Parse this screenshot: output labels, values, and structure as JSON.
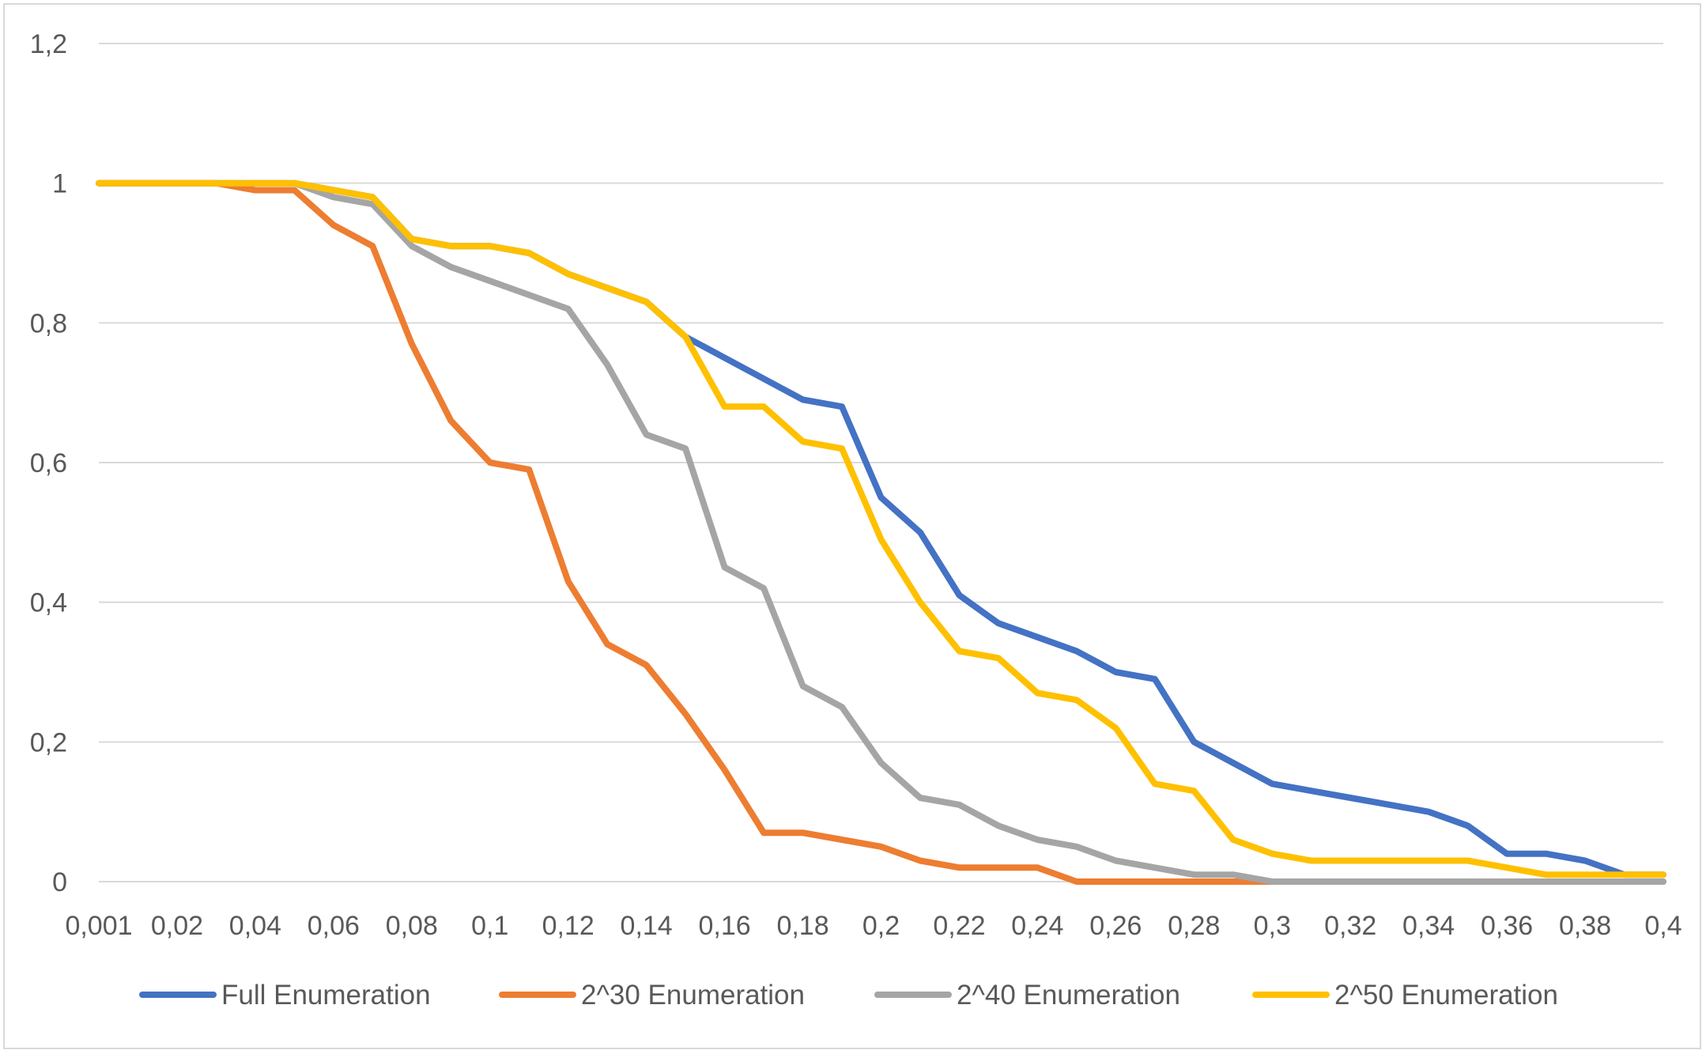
{
  "chart_data": {
    "type": "line",
    "title": "",
    "xlabel": "",
    "ylabel": "",
    "ylim": [
      0,
      1.2
    ],
    "grid": true,
    "legend_position": "bottom",
    "x": [
      0.001,
      0.01,
      0.02,
      0.03,
      0.04,
      0.05,
      0.06,
      0.07,
      0.08,
      0.09,
      0.1,
      0.11,
      0.12,
      0.13,
      0.14,
      0.15,
      0.16,
      0.17,
      0.18,
      0.19,
      0.2,
      0.21,
      0.22,
      0.23,
      0.24,
      0.25,
      0.26,
      0.27,
      0.28,
      0.29,
      0.3,
      0.31,
      0.32,
      0.33,
      0.34,
      0.35,
      0.36,
      0.37,
      0.38,
      0.39,
      0.4
    ],
    "x_tick_labels": [
      "0,001",
      "0,02",
      "0,04",
      "0,06",
      "0,08",
      "0,1",
      "0,12",
      "0,14",
      "0,16",
      "0,18",
      "0,2",
      "0,22",
      "0,24",
      "0,26",
      "0,28",
      "0,3",
      "0,32",
      "0,34",
      "0,36",
      "0,38",
      "0,4"
    ],
    "y_ticks": [
      0,
      0.2,
      0.4,
      0.6,
      0.8,
      1,
      1.2
    ],
    "y_tick_labels": [
      "0",
      "0,2",
      "0,4",
      "0,6",
      "0,8",
      "1",
      "1,2"
    ],
    "series": [
      {
        "name": "Full Enumeration",
        "color": "#4472C4",
        "values": [
          1,
          1,
          1,
          1,
          1,
          1,
          0.99,
          0.98,
          0.92,
          0.91,
          0.91,
          0.9,
          0.87,
          0.85,
          0.83,
          0.78,
          0.75,
          0.72,
          0.69,
          0.68,
          0.55,
          0.5,
          0.41,
          0.37,
          0.35,
          0.33,
          0.3,
          0.29,
          0.2,
          0.17,
          0.14,
          0.13,
          0.12,
          0.11,
          0.1,
          0.08,
          0.04,
          0.04,
          0.03,
          0.01,
          0.01
        ]
      },
      {
        "name": "2^30 Enumeration",
        "color": "#ED7D31",
        "values": [
          1,
          1,
          1,
          1,
          0.99,
          0.99,
          0.94,
          0.91,
          0.77,
          0.66,
          0.6,
          0.59,
          0.43,
          0.34,
          0.31,
          0.24,
          0.16,
          0.07,
          0.07,
          0.06,
          0.05,
          0.03,
          0.02,
          0.02,
          0.02,
          0,
          0,
          0,
          0,
          0,
          0,
          0,
          0,
          0,
          0,
          0,
          0,
          0,
          0,
          0,
          0
        ]
      },
      {
        "name": "2^40 Enumeration",
        "color": "#A5A5A5",
        "values": [
          1,
          1,
          1,
          1,
          1,
          1,
          0.98,
          0.97,
          0.91,
          0.88,
          0.86,
          0.84,
          0.82,
          0.74,
          0.64,
          0.62,
          0.45,
          0.42,
          0.28,
          0.25,
          0.17,
          0.12,
          0.11,
          0.08,
          0.06,
          0.05,
          0.03,
          0.02,
          0.01,
          0.01,
          0,
          0,
          0,
          0,
          0,
          0,
          0,
          0,
          0,
          0,
          0
        ]
      },
      {
        "name": "2^50 Enumeration",
        "color": "#FFC000",
        "values": [
          1,
          1,
          1,
          1,
          1,
          1,
          0.99,
          0.98,
          0.92,
          0.91,
          0.91,
          0.9,
          0.87,
          0.85,
          0.83,
          0.78,
          0.68,
          0.68,
          0.63,
          0.62,
          0.49,
          0.4,
          0.33,
          0.32,
          0.27,
          0.26,
          0.22,
          0.14,
          0.13,
          0.06,
          0.04,
          0.03,
          0.03,
          0.03,
          0.03,
          0.03,
          0.02,
          0.01,
          0.01,
          0.01,
          0.01
        ]
      }
    ]
  }
}
